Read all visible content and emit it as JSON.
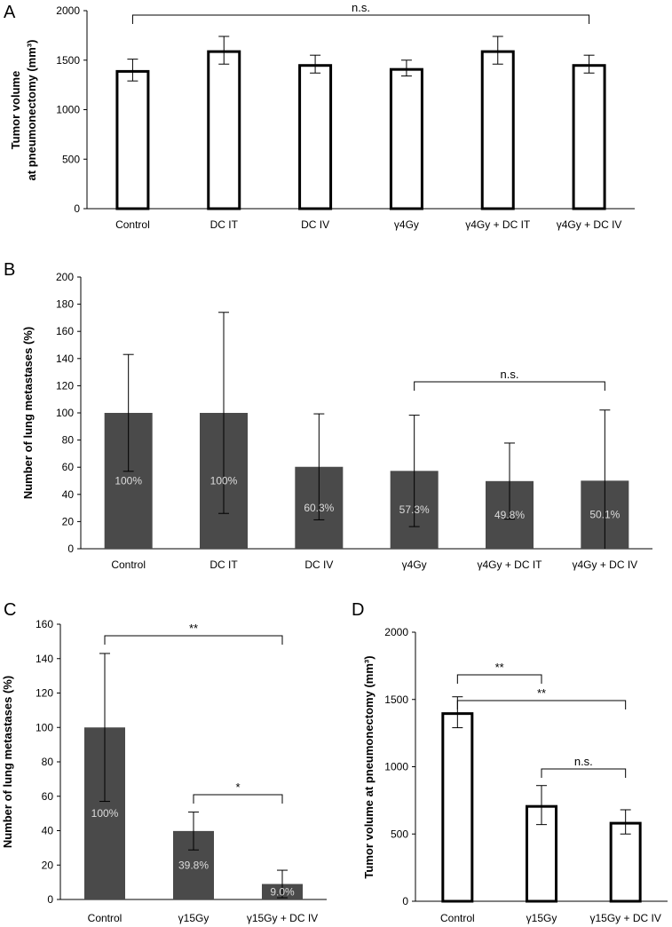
{
  "chart_data": [
    {
      "panel": "A",
      "type": "bar",
      "style": "outline",
      "ylabel": "Tumor volume at pneumonectomy (mm³)",
      "ylabel_lines": [
        "Tumor volume",
        "at pneumonectomy (mm³)"
      ],
      "ylim": [
        0,
        2000
      ],
      "yticks": [
        0,
        500,
        1000,
        1500,
        2000
      ],
      "categories": [
        "Control",
        "DC IT",
        "DC IV",
        "γ4Gy",
        "γ4Gy + DC IT",
        "γ4Gy + DC IV"
      ],
      "values": [
        1400,
        1600,
        1460,
        1420,
        1600,
        1460
      ],
      "errors": [
        110,
        140,
        90,
        80,
        140,
        90
      ],
      "value_labels": [],
      "brackets": [
        {
          "from": 0,
          "to": 5,
          "label": "n.s."
        }
      ]
    },
    {
      "panel": "B",
      "type": "bar",
      "style": "filled",
      "ylabel": "Number of lung metastases (%)",
      "ylabel_lines": [
        "Number of lung metastases (%)"
      ],
      "ylim": [
        0,
        200
      ],
      "yticks": [
        0,
        20,
        40,
        60,
        80,
        100,
        120,
        140,
        160,
        180,
        200
      ],
      "categories": [
        "Control",
        "DC IT",
        "DC IV",
        "γ4Gy",
        "γ4Gy + DC IT",
        "γ4Gy + DC IV"
      ],
      "values": [
        100,
        100,
        60.3,
        57.3,
        49.8,
        50.1
      ],
      "errors": [
        43,
        74,
        39,
        41,
        28,
        52
      ],
      "value_labels": [
        "100%",
        "100%",
        "60.3%",
        "57.3%",
        "49.8%",
        "50.1%"
      ],
      "brackets": [
        {
          "from": 3,
          "to": 5,
          "label": "n.s."
        }
      ]
    },
    {
      "panel": "C",
      "type": "bar",
      "style": "filled",
      "ylabel": "Number of lung metastases (%)",
      "ylabel_lines": [
        "Number of lung metastases (%)"
      ],
      "ylim": [
        0,
        160
      ],
      "yticks": [
        0,
        20,
        40,
        60,
        80,
        100,
        120,
        140,
        160
      ],
      "categories": [
        "Control",
        "γ15Gy",
        "γ15Gy + DC IV"
      ],
      "values": [
        100,
        39.8,
        9.0
      ],
      "errors": [
        43,
        11,
        8
      ],
      "value_labels": [
        "100%",
        "39.8%",
        "9.0%"
      ],
      "brackets": [
        {
          "from": 0,
          "to": 2,
          "label": "**"
        },
        {
          "from": 1,
          "to": 2,
          "label": "*"
        }
      ]
    },
    {
      "panel": "D",
      "type": "bar",
      "style": "outline",
      "ylabel": "Tumor volume at pneumonectomy (mm³)",
      "ylabel_lines": [
        "Tumor volume at pneumonectomy (mm³)"
      ],
      "ylim": [
        0,
        2000
      ],
      "yticks": [
        0,
        500,
        1000,
        1500,
        2000
      ],
      "categories": [
        "Control",
        "γ15Gy",
        "γ15Gy + DC IV"
      ],
      "values": [
        1405,
        715,
        590
      ],
      "errors": [
        115,
        145,
        90
      ],
      "value_labels": [],
      "brackets": [
        {
          "from": 0,
          "to": 2,
          "label": "**"
        },
        {
          "from": 0,
          "to": 1,
          "label": "**"
        },
        {
          "from": 1,
          "to": 2,
          "label": "n.s."
        }
      ]
    }
  ],
  "colors": {
    "bar_fill": "#4a4a4a",
    "axis": "#000000",
    "value_label": "#dcdcdc"
  }
}
